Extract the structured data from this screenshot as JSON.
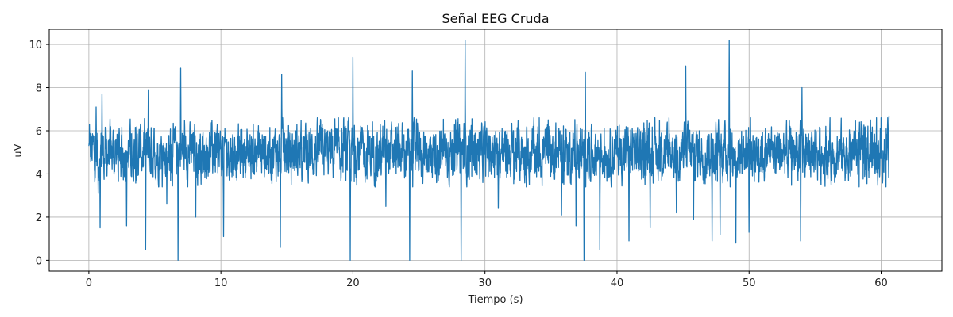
{
  "chart_data": {
    "type": "line",
    "title": "Señal EEG Cruda",
    "xlabel": "Tiempo (s)",
    "ylabel": "uV",
    "xlim": [
      -3,
      64.6
    ],
    "ylim": [
      -0.5,
      10.7
    ],
    "xticks": [
      0,
      10,
      20,
      30,
      40,
      50,
      60
    ],
    "yticks": [
      0,
      2,
      4,
      6,
      8,
      10
    ],
    "grid": true,
    "series": [
      {
        "color": "#1f77b4",
        "baseline": 5.0,
        "x_start": 0,
        "x_end": 60.6,
        "peaks": [
          {
            "x": 0.05,
            "y": 6.3
          },
          {
            "x": 0.55,
            "y": 7.1
          },
          {
            "x": 0.7,
            "y": 3.1
          },
          {
            "x": 0.85,
            "y": 1.5
          },
          {
            "x": 1.0,
            "y": 7.7
          },
          {
            "x": 2.85,
            "y": 1.6
          },
          {
            "x": 4.3,
            "y": 0.5
          },
          {
            "x": 4.5,
            "y": 7.9
          },
          {
            "x": 5.9,
            "y": 2.6
          },
          {
            "x": 6.75,
            "y": 0.0
          },
          {
            "x": 6.95,
            "y": 8.9
          },
          {
            "x": 8.1,
            "y": 2.0
          },
          {
            "x": 10.2,
            "y": 1.1
          },
          {
            "x": 10.3,
            "y": 6.1
          },
          {
            "x": 14.5,
            "y": 0.6
          },
          {
            "x": 14.6,
            "y": 8.6
          },
          {
            "x": 19.8,
            "y": 0.0
          },
          {
            "x": 20.0,
            "y": 9.4
          },
          {
            "x": 22.5,
            "y": 2.5
          },
          {
            "x": 24.3,
            "y": 0.0
          },
          {
            "x": 24.5,
            "y": 8.8
          },
          {
            "x": 28.2,
            "y": 0.0
          },
          {
            "x": 28.5,
            "y": 10.2
          },
          {
            "x": 31.0,
            "y": 2.4
          },
          {
            "x": 35.8,
            "y": 2.1
          },
          {
            "x": 36.9,
            "y": 1.6
          },
          {
            "x": 37.5,
            "y": 0.0
          },
          {
            "x": 37.6,
            "y": 8.7
          },
          {
            "x": 38.7,
            "y": 0.5
          },
          {
            "x": 40.9,
            "y": 0.9
          },
          {
            "x": 42.5,
            "y": 1.5
          },
          {
            "x": 44.5,
            "y": 2.2
          },
          {
            "x": 45.2,
            "y": 9.0
          },
          {
            "x": 45.8,
            "y": 1.9
          },
          {
            "x": 47.2,
            "y": 0.9
          },
          {
            "x": 47.8,
            "y": 1.2
          },
          {
            "x": 48.5,
            "y": 10.2
          },
          {
            "x": 49.0,
            "y": 0.8
          },
          {
            "x": 50.0,
            "y": 1.3
          },
          {
            "x": 53.9,
            "y": 0.9
          },
          {
            "x": 54.0,
            "y": 8.0
          },
          {
            "x": 59.2,
            "y": 6.5
          },
          {
            "x": 60.6,
            "y": 6.7
          }
        ]
      }
    ]
  }
}
